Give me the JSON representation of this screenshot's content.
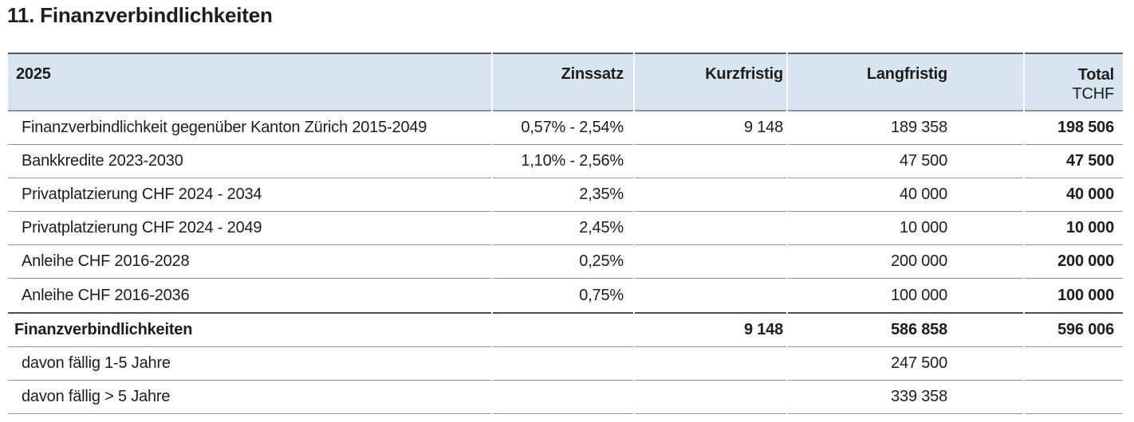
{
  "page": {
    "title": "11. Finanzverbindlichkeiten"
  },
  "table": {
    "year": "2025",
    "columns": [
      "Zinssatz",
      "Kurzfristig",
      "Langfristig",
      "Total"
    ],
    "unit": "TCHF",
    "rows": [
      {
        "label": "Finanzverbindlichkeit gegenüber Kanton Zürich 2015-2049",
        "zinssatz": "0,57% - 2,54%",
        "kurzfristig": "9 148",
        "langfristig": "189 358",
        "total": "198 506"
      },
      {
        "label": "Bankkredite 2023-2030",
        "zinssatz": "1,10% - 2,56%",
        "kurzfristig": "",
        "langfristig": "47 500",
        "total": "47 500"
      },
      {
        "label": "Privatplatzierung CHF 2024 - 2034",
        "zinssatz": "2,35%",
        "kurzfristig": "",
        "langfristig": "40 000",
        "total": "40 000"
      },
      {
        "label": "Privatplatzierung CHF 2024 - 2049",
        "zinssatz": "2,45%",
        "kurzfristig": "",
        "langfristig": "10 000",
        "total": "10 000"
      },
      {
        "label": "Anleihe CHF 2016-2028",
        "zinssatz": "0,25%",
        "kurzfristig": "",
        "langfristig": "200 000",
        "total": "200 000"
      },
      {
        "label": "Anleihe CHF 2016-2036",
        "zinssatz": "0,75%",
        "kurzfristig": "",
        "langfristig": "100 000",
        "total": "100 000"
      }
    ],
    "total_row": {
      "label": "Finanzverbindlichkeiten",
      "zinssatz": "",
      "kurzfristig": "9 148",
      "langfristig": "586 858",
      "total": "596 006"
    },
    "breakdown_rows": [
      {
        "label": "davon fällig 1-5 Jahre",
        "zinssatz": "",
        "kurzfristig": "",
        "langfristig": "247 500",
        "total": ""
      },
      {
        "label": "davon fällig > 5 Jahre",
        "zinssatz": "",
        "kurzfristig": "",
        "langfristig": "339 358",
        "total": ""
      }
    ],
    "colors": {
      "header_bg": "#d8e5f1",
      "rule_dark": "#54585d",
      "rule_mid": "#4d4d4d",
      "rule_light": "#8f9499",
      "text": "#1d1d1b"
    }
  }
}
